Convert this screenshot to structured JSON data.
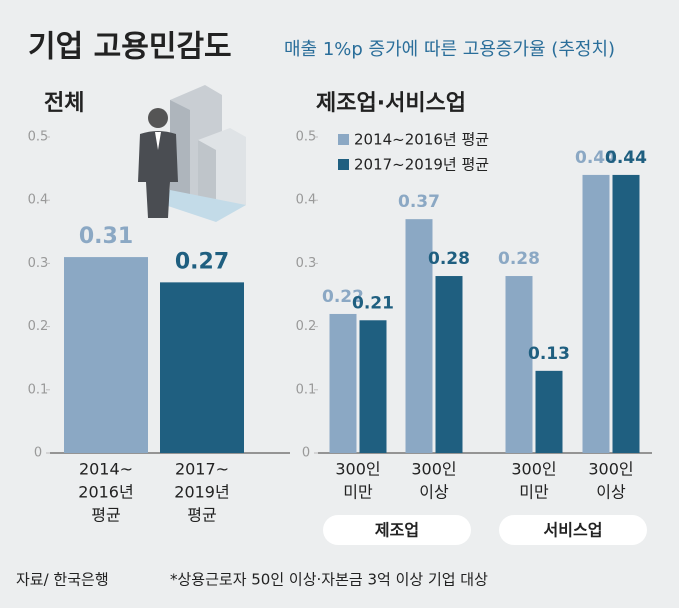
{
  "title": "기업 고용민감도",
  "subtitle": "매출 1%p 증가에 따른 고용증가율 (추정치)",
  "source": "자료/ 한국은행",
  "note": "*상용근로자 50인 이상·자본금 3억 이상 기업 대상",
  "chart_data": [
    {
      "type": "bar",
      "title": "전체",
      "categories": [
        [
          "2014~",
          "2016년",
          "평균"
        ],
        [
          "2017~",
          "2019년",
          "평균"
        ]
      ],
      "values": [
        0.31,
        0.27
      ],
      "colors": [
        "#8ba8c4",
        "#1f5f80"
      ],
      "ylim": [
        0,
        0.5
      ],
      "yticks": [
        0,
        0.1,
        0.2,
        0.3,
        0.4,
        0.5
      ]
    },
    {
      "type": "grouped_bar",
      "title": "제조업·서비스업",
      "categories": [
        [
          "300인",
          "미만"
        ],
        [
          "300인",
          "이상"
        ],
        [
          "300인",
          "미만"
        ],
        [
          "300인",
          "이상"
        ]
      ],
      "groups": [
        "제조업",
        "서비스업"
      ],
      "series": [
        {
          "name": "2014~2016년 평균",
          "color": "#8ba8c4",
          "values": [
            0.22,
            0.37,
            0.28,
            0.44
          ]
        },
        {
          "name": "2017~2019년 평균",
          "color": "#1f5f80",
          "values": [
            0.21,
            0.28,
            0.13,
            0.44
          ]
        }
      ],
      "ylim": [
        0,
        0.5
      ],
      "yticks": [
        0,
        0.1,
        0.2,
        0.3,
        0.4,
        0.5
      ]
    }
  ]
}
